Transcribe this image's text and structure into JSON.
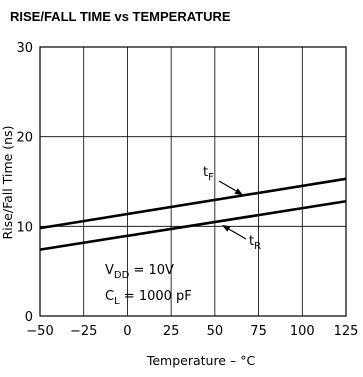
{
  "chart_data": {
    "type": "line",
    "title": "RISE/FALL TIME vs TEMPERATURE",
    "xlabel": "Temperature – °C",
    "ylabel": "Rise/Fall Time (ns)",
    "xlim": [
      -50,
      125
    ],
    "ylim": [
      0,
      30
    ],
    "x_ticks": [
      -50,
      -25,
      0,
      25,
      50,
      75,
      100,
      125
    ],
    "y_ticks": [
      0,
      10,
      20,
      30
    ],
    "grid": true,
    "series": [
      {
        "name": "tF",
        "main": "t",
        "sub": "F",
        "x": [
          -50,
          125
        ],
        "y": [
          9.8,
          15.3
        ]
      },
      {
        "name": "tR",
        "main": "t",
        "sub": "R",
        "x": [
          -50,
          125
        ],
        "y": [
          7.4,
          12.8
        ]
      }
    ],
    "conditions": [
      {
        "main": "V",
        "sub": "DD",
        "rest": " = 10V"
      },
      {
        "main": "C",
        "sub": "L",
        "rest": " = 1000 pF"
      }
    ]
  }
}
